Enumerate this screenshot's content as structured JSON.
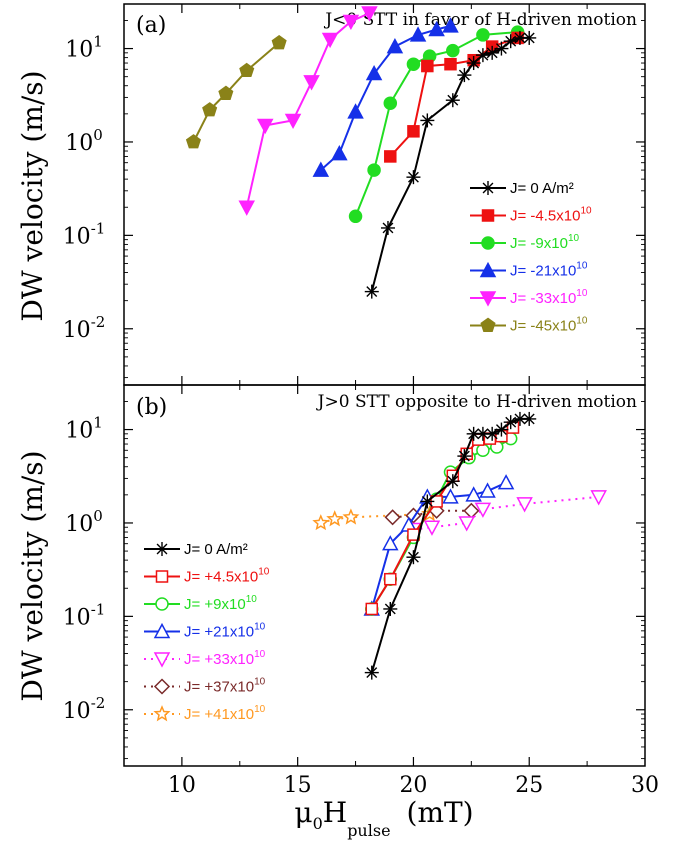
{
  "colors": {
    "black": "#000000",
    "red": "#ee1111",
    "green": "#22dd22",
    "blue": "#1530e8",
    "magenta": "#ff22ff",
    "olive": "#8a8218",
    "brown": "#7a2a2a",
    "orange": "#ff9922"
  },
  "chart_data": [
    {
      "type": "line",
      "panel_label": "(a)",
      "title": "J<0  STT in favor of H-driven motion",
      "ylabel": "DW velocity (m/s)",
      "xlim": [
        7.5,
        30
      ],
      "ylim": [
        0.0025,
        30
      ],
      "yscale": "log",
      "y_ticks": [
        {
          "mant": "10",
          "exp": "-2",
          "value": 0.01
        },
        {
          "mant": "10",
          "exp": "-1",
          "value": 0.1
        },
        {
          "mant": "10",
          "exp": "0",
          "value": 1
        },
        {
          "mant": "10",
          "exp": "1",
          "value": 10
        }
      ],
      "legend_position": "right",
      "series": [
        {
          "name": "J= 0 A/m²",
          "prefix": "J= 0 A/m²",
          "exp": "",
          "color": "#000000",
          "marker": "asterisk",
          "filled": true,
          "dash": false,
          "x": [
            18.2,
            18.9,
            20.0,
            20.6,
            21.7,
            22.2,
            22.6,
            23.0,
            23.4,
            23.8,
            24.2,
            24.6,
            25.0
          ],
          "y": [
            0.025,
            0.12,
            0.42,
            1.7,
            2.8,
            5.2,
            7.0,
            8.5,
            9.0,
            10.0,
            12.0,
            13.0,
            13.0
          ]
        },
        {
          "name": "J= -4.5x10^10",
          "prefix": "J= -4.5x10",
          "exp": "10",
          "color": "#ee1111",
          "marker": "square",
          "filled": true,
          "dash": false,
          "x": [
            19.0,
            20.0,
            20.6,
            21.6,
            22.6,
            23.4,
            24.5
          ],
          "y": [
            0.7,
            1.3,
            6.5,
            6.8,
            7.5,
            10.5,
            13.0
          ]
        },
        {
          "name": "J= -9x10^10",
          "prefix": "J= -9x10",
          "exp": "10",
          "color": "#22dd22",
          "marker": "circle",
          "filled": true,
          "dash": false,
          "x": [
            17.5,
            18.3,
            19.0,
            20.0,
            20.7,
            21.7,
            23.0,
            24.5
          ],
          "y": [
            0.16,
            0.5,
            2.6,
            6.8,
            8.3,
            9.5,
            14.0,
            15.0
          ]
        },
        {
          "name": "J= -21x10^10",
          "prefix": "J= -21x10",
          "exp": "10",
          "color": "#1530e8",
          "marker": "triangle-up",
          "filled": true,
          "dash": false,
          "x": [
            16.0,
            16.8,
            17.5,
            18.3,
            19.2,
            20.2,
            21.0,
            21.6
          ],
          "y": [
            0.5,
            0.75,
            2.1,
            5.4,
            10.5,
            14.0,
            16.0,
            17.5
          ]
        },
        {
          "name": "J= -33x10^10",
          "prefix": "J= -33x10",
          "exp": "10",
          "color": "#ff22ff",
          "marker": "triangle-down",
          "filled": true,
          "dash": false,
          "x": [
            12.8,
            13.6,
            14.8,
            15.6,
            16.4,
            17.3,
            18.1
          ],
          "y": [
            0.2,
            1.5,
            1.7,
            4.4,
            12.5,
            19.5,
            24.0
          ]
        },
        {
          "name": "J= -45x10^10",
          "prefix": "J= -45x10",
          "exp": "10",
          "color": "#8a8218",
          "marker": "pentagon",
          "filled": true,
          "dash": false,
          "x": [
            10.5,
            11.2,
            11.9,
            12.8,
            14.2
          ],
          "y": [
            1.0,
            2.2,
            3.3,
            5.8,
            11.5
          ]
        }
      ]
    },
    {
      "type": "line",
      "panel_label": "(b)",
      "title": "J>0  STT opposite to H-driven motion",
      "ylabel": "DW velocity (m/s)",
      "xlabel_main": "μ",
      "xlabel_sub0": "0",
      "xlabel_h": "H",
      "xlabel_sub": "pulse",
      "xlabel_unit": "(mT)",
      "xlim": [
        7.5,
        30
      ],
      "ylim": [
        0.0025,
        30
      ],
      "yscale": "log",
      "x_ticks": [
        10,
        15,
        20,
        25,
        30
      ],
      "y_ticks": [
        {
          "mant": "10",
          "exp": "-2",
          "value": 0.01
        },
        {
          "mant": "10",
          "exp": "-1",
          "value": 0.1
        },
        {
          "mant": "10",
          "exp": "0",
          "value": 1
        },
        {
          "mant": "10",
          "exp": "1",
          "value": 10
        }
      ],
      "legend_position": "left",
      "series": [
        {
          "name": "J= 0 A/m²",
          "prefix": "J= 0 A/m²",
          "exp": "",
          "color": "#000000",
          "marker": "asterisk",
          "filled": true,
          "dash": false,
          "x": [
            18.2,
            19.0,
            20.0,
            20.6,
            21.7,
            22.2,
            22.6,
            23.0,
            23.4,
            23.8,
            24.2,
            24.6,
            25.0
          ],
          "y": [
            0.025,
            0.12,
            0.43,
            1.7,
            2.8,
            5.2,
            9.0,
            9.0,
            9.0,
            10.0,
            12.0,
            13.0,
            13.0
          ]
        },
        {
          "name": "J= +4.5x10^10",
          "prefix": "J= +4.5x10",
          "exp": "10",
          "color": "#ee1111",
          "marker": "square",
          "filled": false,
          "dash": false,
          "x": [
            18.2,
            19.0,
            20.0,
            21.0,
            21.7,
            22.3,
            22.8,
            23.3,
            23.8,
            24.3
          ],
          "y": [
            0.12,
            0.25,
            0.75,
            1.7,
            3.2,
            5.5,
            7.8,
            8.0,
            8.5,
            10.5
          ]
        },
        {
          "name": "J= +9x10^10",
          "prefix": "J= +9x10",
          "exp": "10",
          "color": "#22dd22",
          "marker": "circle",
          "filled": false,
          "dash": false,
          "x": [
            18.2,
            19.0,
            20.0,
            21.0,
            21.6,
            22.4,
            23.0,
            23.6,
            24.2
          ],
          "y": [
            0.12,
            0.25,
            0.7,
            1.8,
            3.5,
            5.0,
            6.0,
            6.5,
            8.0
          ]
        },
        {
          "name": "J= +21x10^10",
          "prefix": "J= +21x10",
          "exp": "10",
          "color": "#1530e8",
          "marker": "triangle-up",
          "filled": false,
          "dash": false,
          "x": [
            18.2,
            19.0,
            19.8,
            20.6,
            21.6,
            22.6,
            23.2,
            24.0
          ],
          "y": [
            0.12,
            0.6,
            0.95,
            1.9,
            1.9,
            2.0,
            2.2,
            2.7
          ]
        },
        {
          "name": "J= +33x10^10",
          "prefix": "J= +33x10",
          "exp": "10",
          "color": "#ff22ff",
          "marker": "triangle-down",
          "filled": false,
          "dash": true,
          "x": [
            20.0,
            20.8,
            22.3,
            23.0,
            24.8,
            28.0
          ],
          "y": [
            0.85,
            0.9,
            1.0,
            1.4,
            1.6,
            1.9
          ]
        },
        {
          "name": "J= +37x10^10",
          "prefix": "J= +37x10",
          "exp": "10",
          "color": "#7a2a2a",
          "marker": "diamond",
          "filled": false,
          "dash": true,
          "x": [
            19.1,
            20.0,
            21.0,
            22.5
          ],
          "y": [
            1.15,
            1.2,
            1.35,
            1.35
          ]
        },
        {
          "name": "J= +41x10^10",
          "prefix": "J= +41x10",
          "exp": "10",
          "color": "#ff9922",
          "marker": "star",
          "filled": false,
          "dash": true,
          "x": [
            16.0,
            16.6,
            17.3,
            20.7
          ],
          "y": [
            1.0,
            1.1,
            1.15,
            1.25
          ]
        }
      ]
    }
  ]
}
